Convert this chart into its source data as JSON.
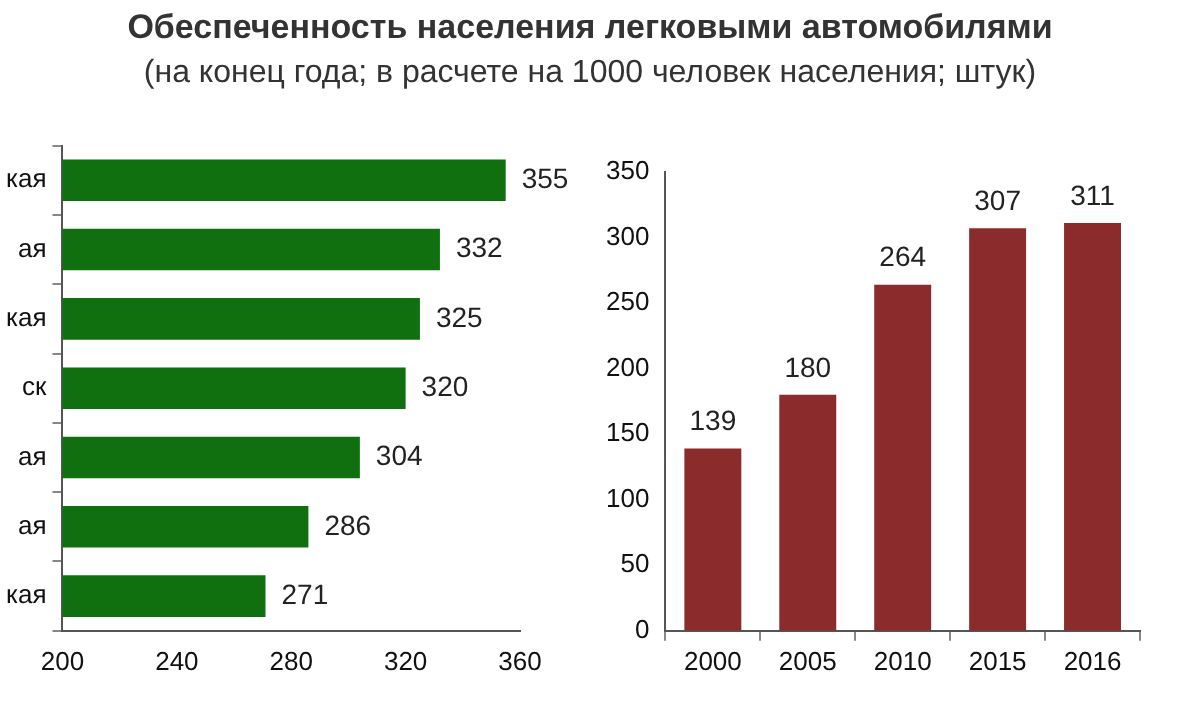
{
  "chart_data": [
    {
      "type": "bar",
      "title": "Обеспеченность населения легковыми автомобилями",
      "subtitle": "(на конец года; в расчете на 1000 человек населения; штук)",
      "orientation": "horizontal",
      "categories": [
        "кая",
        "ая",
        "кая",
        "ск",
        "ая",
        "ая",
        "кая"
      ],
      "values": [
        355,
        332,
        325,
        320,
        304,
        286,
        271
      ],
      "color": "#107010",
      "xlim": [
        200,
        360
      ],
      "xticks": [
        200,
        240,
        280,
        320,
        360
      ],
      "data_labels": true,
      "legend": false
    },
    {
      "type": "bar",
      "categories": [
        "2000",
        "2005",
        "2010",
        "2015",
        "2016"
      ],
      "values": [
        139,
        180,
        264,
        307,
        311
      ],
      "color": "#8b2b2b",
      "ylim": [
        0,
        350
      ],
      "yticks": [
        0,
        50,
        100,
        150,
        200,
        250,
        300,
        350
      ],
      "data_labels": true,
      "legend": false
    }
  ]
}
